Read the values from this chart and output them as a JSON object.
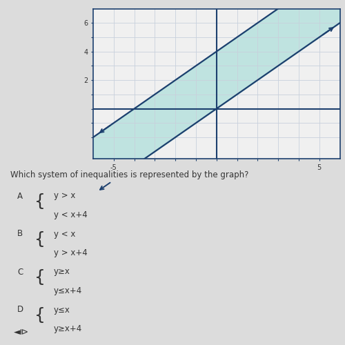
{
  "question": "Which system of inequalities is represented by the graph?",
  "choices_A_line1": "y > x",
  "choices_A_line2": "y < x+4",
  "choices_B_line1": "y < x",
  "choices_B_line2": "y > x+4",
  "choices_C_line1": "y≥x",
  "choices_C_line2": "y≤x+4",
  "choices_D_line1": "y≤x",
  "choices_D_line2": "y≥x+4",
  "xlim": [
    -6,
    6
  ],
  "ylim": [
    -3.5,
    7
  ],
  "xticks": [
    -5,
    -4,
    -3,
    -2,
    -1,
    0,
    1,
    2,
    3,
    4,
    5
  ],
  "yticks": [
    -2,
    -1,
    0,
    1,
    2,
    3,
    4,
    5,
    6
  ],
  "x_labeled": [
    -5,
    5
  ],
  "y_labeled": [
    2,
    4,
    6
  ],
  "line1_intercept": 0,
  "line2_intercept": 4,
  "shade_color": "#8fd8d2",
  "shade_alpha": 0.5,
  "line_color": "#1c3f6e",
  "line_width": 1.6,
  "grid_color": "#c8d0dc",
  "axis_color": "#1c3f6e",
  "background_color": "#dcdcdc",
  "graph_bg": "#f0f0f0",
  "text_color": "#333333",
  "question_fontsize": 8.5,
  "choice_fontsize": 8.5,
  "tick_fontsize": 7
}
